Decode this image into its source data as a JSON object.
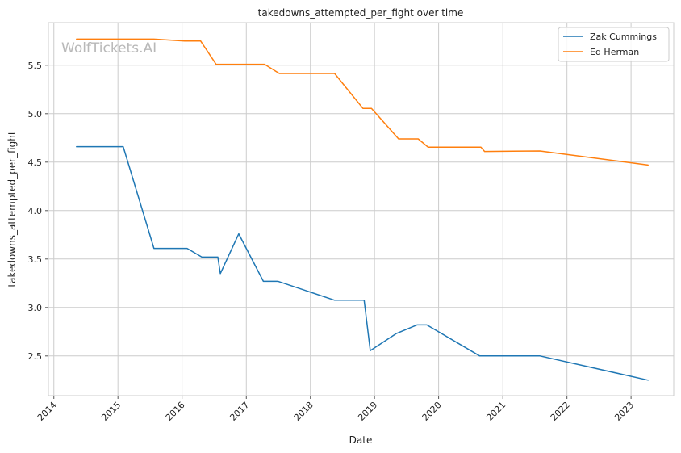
{
  "chart_data": {
    "type": "line",
    "title": "takedowns_attempted_per_fight over time",
    "xlabel": "Date",
    "ylabel": "takedowns_attempted_per_fight",
    "watermark": "WolfTickets.AI",
    "x_ticks": [
      "2014",
      "2015",
      "2016",
      "2017",
      "2018",
      "2019",
      "2020",
      "2021",
      "2022",
      "2023"
    ],
    "y_ticks": [
      "2.5",
      "3.0",
      "3.5",
      "4.0",
      "4.5",
      "5.0",
      "5.5"
    ],
    "xlim": [
      "2013-12-01",
      "2023-09-01"
    ],
    "ylim": [
      2.09,
      5.94
    ],
    "grid": true,
    "legend_position": "top-right",
    "series": [
      {
        "name": "Zak Cummings",
        "color": "#1f77b4",
        "points": [
          {
            "x": "2014-05-10",
            "y": 4.66
          },
          {
            "x": "2015-01-31",
            "y": 4.66
          },
          {
            "x": "2015-07-25",
            "y": 3.61
          },
          {
            "x": "2016-01-30",
            "y": 3.61
          },
          {
            "x": "2016-04-23",
            "y": 3.52
          },
          {
            "x": "2016-07-23",
            "y": 3.52
          },
          {
            "x": "2016-08-06",
            "y": 3.35
          },
          {
            "x": "2016-11-19",
            "y": 3.76
          },
          {
            "x": "2017-04-08",
            "y": 3.27
          },
          {
            "x": "2017-07-01",
            "y": 3.27
          },
          {
            "x": "2018-05-19",
            "y": 3.075
          },
          {
            "x": "2018-11-03",
            "y": 3.075
          },
          {
            "x": "2018-12-08",
            "y": 2.555
          },
          {
            "x": "2019-05-04",
            "y": 2.73
          },
          {
            "x": "2019-08-31",
            "y": 2.82
          },
          {
            "x": "2019-10-26",
            "y": 2.82
          },
          {
            "x": "2020-08-22",
            "y": 2.5
          },
          {
            "x": "2021-07-31",
            "y": 2.5
          },
          {
            "x": "2023-04-08",
            "y": 2.25
          }
        ]
      },
      {
        "name": "Ed Herman",
        "color": "#ff7f0e",
        "points": [
          {
            "x": "2014-05-10",
            "y": 5.77
          },
          {
            "x": "2015-07-25",
            "y": 5.77
          },
          {
            "x": "2016-01-16",
            "y": 5.75
          },
          {
            "x": "2016-04-16",
            "y": 5.75
          },
          {
            "x": "2016-07-13",
            "y": 5.51
          },
          {
            "x": "2017-04-15",
            "y": 5.51
          },
          {
            "x": "2017-07-08",
            "y": 5.415
          },
          {
            "x": "2018-05-19",
            "y": 5.415
          },
          {
            "x": "2018-10-27",
            "y": 5.055
          },
          {
            "x": "2018-12-15",
            "y": 5.055
          },
          {
            "x": "2019-05-18",
            "y": 4.74
          },
          {
            "x": "2019-09-07",
            "y": 4.74
          },
          {
            "x": "2019-11-02",
            "y": 4.655
          },
          {
            "x": "2020-08-29",
            "y": 4.655
          },
          {
            "x": "2020-09-19",
            "y": 4.61
          },
          {
            "x": "2021-07-31",
            "y": 4.615
          },
          {
            "x": "2023-04-08",
            "y": 4.47
          }
        ]
      }
    ]
  }
}
